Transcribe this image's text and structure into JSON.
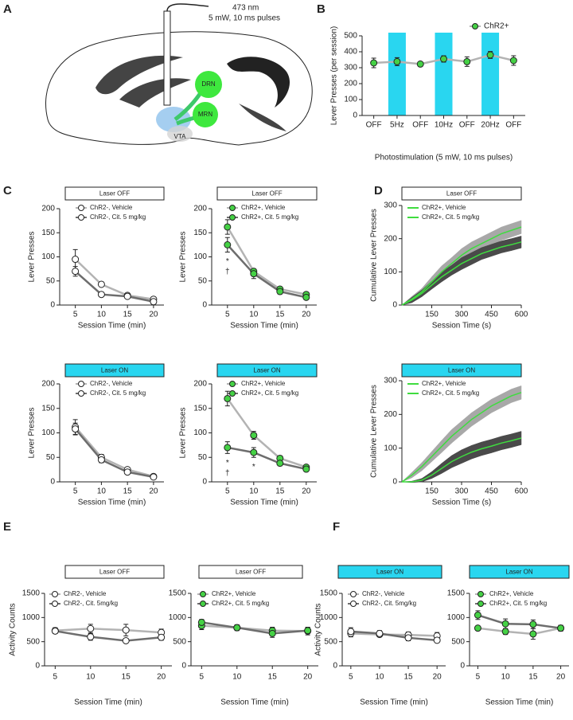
{
  "panels": [
    "A",
    "B",
    "C",
    "D",
    "E",
    "F"
  ],
  "diagram": {
    "laser_wavelength": "473 nm",
    "laser_settings": "5 mW, 10 ms pulses",
    "nodes": [
      "DRN",
      "MRN",
      "VTA"
    ]
  },
  "chart_data": [
    {
      "type": "line",
      "categories": [
        "OFF",
        "5Hz",
        "OFF",
        "10Hz",
        "OFF",
        "20Hz",
        "OFF"
      ],
      "series": [
        {
          "name": "ChR2+",
          "color": "#b3b3b3",
          "marker_fill": "#45d145",
          "values": [
            330,
            338,
            323,
            355,
            338,
            380,
            345
          ],
          "errors": [
            30,
            25,
            6,
            20,
            30,
            22,
            30
          ]
        }
      ],
      "highlight_color": "#29d6f0",
      "ylim": [
        0,
        500
      ],
      "yticks": [
        0,
        100,
        200,
        300,
        400,
        500
      ],
      "ylabel": "Lever Presses (per session)",
      "xlabel": "Photostimulation (5 mW, 10 ms pulses)",
      "legend": "top-right"
    },
    {
      "type": "line",
      "header": "Laser OFF",
      "header_color": "#ffffff",
      "x": [
        5,
        10,
        15,
        20
      ],
      "xlim": [
        2,
        22
      ],
      "xticks": [
        5,
        10,
        15,
        20
      ],
      "ylim": [
        0,
        200
      ],
      "yticks": [
        0,
        50,
        100,
        150,
        200
      ],
      "ylabel": "Lever Presses",
      "xlabel": "Session Time (min)",
      "legend": "top-left",
      "series": [
        {
          "name": "ChR2-, Vehicle",
          "color": "#b3b3b3",
          "marker_fill": "#ffffff",
          "values": [
            95,
            43,
            20,
            12
          ],
          "errors": [
            20,
            3,
            3,
            3
          ]
        },
        {
          "name": "ChR2-, Cit. 5 mg/kg",
          "color": "#6d6d6d",
          "marker_fill": "#ffffff",
          "values": [
            70,
            22,
            18,
            7
          ],
          "errors": [
            10,
            3,
            3,
            2
          ]
        }
      ]
    },
    {
      "type": "line",
      "header": "Laser OFF",
      "header_color": "#ffffff",
      "x": [
        5,
        10,
        15,
        20
      ],
      "xlim": [
        2,
        22
      ],
      "xticks": [
        5,
        10,
        15,
        20
      ],
      "ylim": [
        0,
        200
      ],
      "yticks": [
        0,
        50,
        100,
        150,
        200
      ],
      "ylabel": "Lever Presses",
      "xlabel": "Session Time (min)",
      "legend": "top-left",
      "series": [
        {
          "name": "ChR2+, Vehicle",
          "color": "#b3b3b3",
          "marker_fill": "#45d145",
          "values": [
            162,
            70,
            33,
            22
          ],
          "errors": [
            15,
            5,
            5,
            3
          ]
        },
        {
          "name": "ChR2+, Cit. 5 mg/kg",
          "color": "#6d6d6d",
          "marker_fill": "#45d145",
          "values": [
            125,
            65,
            28,
            16
          ],
          "errors": [
            15,
            10,
            5,
            3
          ]
        }
      ],
      "annotations": [
        {
          "text": "*",
          "x": 5
        },
        {
          "text": "†",
          "x": 5
        }
      ]
    },
    {
      "type": "line",
      "header": "Laser OFF",
      "header_color": "#ffffff",
      "x": [
        0,
        50,
        100,
        150,
        200,
        250,
        300,
        350,
        400,
        450,
        500,
        550,
        600
      ],
      "xlim": [
        0,
        600
      ],
      "xticks": [
        150,
        300,
        450,
        600
      ],
      "ylim": [
        0,
        300
      ],
      "yticks": [
        0,
        100,
        200,
        300
      ],
      "ylabel": "Cumulative Lever Presses",
      "xlabel": "Session Time (s)",
      "legend": "top-left",
      "series": [
        {
          "name": "ChR2+, Vehicle",
          "color": "#3fdc3f",
          "band_color": "#a8a8a8",
          "values": [
            0,
            18,
            40,
            70,
            100,
            125,
            150,
            170,
            185,
            200,
            215,
            225,
            235
          ],
          "errors": [
            0,
            8,
            10,
            15,
            18,
            18,
            20,
            20,
            20,
            20,
            20,
            20,
            20
          ]
        },
        {
          "name": "ChR2+, Cit. 5 mg/kg",
          "color": "#3fdc3f",
          "band_color": "#4a4a4a",
          "values": [
            0,
            15,
            35,
            60,
            85,
            105,
            125,
            140,
            155,
            165,
            175,
            182,
            190
          ],
          "errors": [
            0,
            8,
            10,
            12,
            15,
            15,
            18,
            18,
            18,
            18,
            18,
            18,
            18
          ]
        }
      ]
    },
    {
      "type": "line",
      "header": "Laser ON",
      "header_color": "#29d6f0",
      "x": [
        5,
        10,
        15,
        20
      ],
      "xlim": [
        2,
        22
      ],
      "xticks": [
        5,
        10,
        15,
        20
      ],
      "ylim": [
        0,
        200
      ],
      "yticks": [
        0,
        50,
        100,
        150,
        200
      ],
      "ylabel": "Lever Presses",
      "xlabel": "Session Time (min)",
      "legend": "top-left",
      "series": [
        {
          "name": "ChR2-, Vehicle",
          "color": "#b3b3b3",
          "marker_fill": "#ffffff",
          "values": [
            112,
            50,
            25,
            11
          ],
          "errors": [
            15,
            6,
            4,
            2
          ]
        },
        {
          "name": "ChR2-, Cit. 5 mg/kg",
          "color": "#6d6d6d",
          "marker_fill": "#ffffff",
          "values": [
            108,
            45,
            20,
            10
          ],
          "errors": [
            12,
            6,
            4,
            2
          ]
        }
      ]
    },
    {
      "type": "line",
      "header": "Laser ON",
      "header_color": "#29d6f0",
      "x": [
        5,
        10,
        15,
        20
      ],
      "xlim": [
        2,
        22
      ],
      "xticks": [
        5,
        10,
        15,
        20
      ],
      "ylim": [
        0,
        200
      ],
      "yticks": [
        0,
        50,
        100,
        150,
        200
      ],
      "ylabel": "Lever Presses",
      "xlabel": "Session Time (min)",
      "legend": "top-left",
      "series": [
        {
          "name": "ChR2+, Vehicle",
          "color": "#b3b3b3",
          "marker_fill": "#45d145",
          "values": [
            170,
            95,
            48,
            30
          ],
          "errors": [
            15,
            8,
            5,
            3
          ]
        },
        {
          "name": "ChR2+, Cit. 5 mg/kg",
          "color": "#6d6d6d",
          "marker_fill": "#45d145",
          "values": [
            70,
            60,
            38,
            26
          ],
          "errors": [
            12,
            10,
            5,
            3
          ]
        }
      ],
      "annotations": [
        {
          "text": "*",
          "x": 5
        },
        {
          "text": "†",
          "x": 5
        },
        {
          "text": "*",
          "x": 10
        }
      ]
    },
    {
      "type": "line",
      "header": "Laser ON",
      "header_color": "#29d6f0",
      "x": [
        0,
        50,
        100,
        150,
        200,
        250,
        300,
        350,
        400,
        450,
        500,
        550,
        600
      ],
      "xlim": [
        0,
        600
      ],
      "xticks": [
        150,
        300,
        450,
        600
      ],
      "ylim": [
        0,
        300
      ],
      "yticks": [
        0,
        100,
        200,
        300
      ],
      "ylabel": "Cumulative Lever Presses",
      "xlabel": "Session Time (s)",
      "legend": "top-left",
      "series": [
        {
          "name": "ChR2+, Vehicle",
          "color": "#3fdc3f",
          "band_color": "#a8a8a8",
          "values": [
            0,
            20,
            45,
            75,
            105,
            135,
            160,
            185,
            205,
            225,
            240,
            255,
            265
          ],
          "errors": [
            0,
            8,
            12,
            15,
            18,
            20,
            20,
            20,
            20,
            20,
            20,
            20,
            20
          ]
        },
        {
          "name": "ChR2+, Cit. 5 mg/kg",
          "color": "#3fdc3f",
          "band_color": "#4a4a4a",
          "values": [
            0,
            0,
            5,
            20,
            40,
            60,
            75,
            88,
            98,
            106,
            115,
            122,
            130
          ],
          "errors": [
            0,
            2,
            5,
            10,
            15,
            18,
            20,
            20,
            20,
            20,
            20,
            20,
            20
          ]
        }
      ]
    },
    {
      "type": "line",
      "header": "Laser OFF",
      "header_color": "#ffffff",
      "x": [
        5,
        10,
        15,
        20
      ],
      "xlim": [
        3.5,
        21.5
      ],
      "xticks": [
        5,
        10,
        15,
        20
      ],
      "ylim": [
        0,
        1500
      ],
      "yticks": [
        0,
        500,
        1000,
        1500
      ],
      "ylabel": "Activity Counts",
      "xlabel": "Session Time (min)",
      "legend": "top-left",
      "series": [
        {
          "name": "ChR2-, Vehicle",
          "color": "#b3b3b3",
          "marker_fill": "#ffffff",
          "values": [
            730,
            770,
            740,
            690
          ],
          "errors": [
            60,
            90,
            120,
            70
          ]
        },
        {
          "name": "ChR2-, Cit. 5mg/kg",
          "color": "#6d6d6d",
          "marker_fill": "#ffffff",
          "values": [
            720,
            600,
            520,
            590
          ],
          "errors": [
            50,
            70,
            40,
            60
          ]
        }
      ]
    },
    {
      "type": "line",
      "header": "Laser OFF",
      "header_color": "#ffffff",
      "x": [
        5,
        10,
        15,
        20
      ],
      "xlim": [
        3.5,
        21.5
      ],
      "xticks": [
        5,
        10,
        15,
        20
      ],
      "ylim": [
        0,
        1500
      ],
      "yticks": [
        0,
        500,
        1000,
        1500
      ],
      "xlabel": "Session Time (min)",
      "legend": "top-left",
      "series": [
        {
          "name": "ChR2+, Vehicle",
          "color": "#b3b3b3",
          "marker_fill": "#45d145",
          "values": [
            830,
            790,
            730,
            720
          ],
          "errors": [
            80,
            60,
            70,
            80
          ]
        },
        {
          "name": "ChR2+, Cit. 5 mg/kg",
          "color": "#6d6d6d",
          "marker_fill": "#45d145",
          "values": [
            900,
            790,
            670,
            730
          ],
          "errors": [
            60,
            50,
            80,
            60
          ]
        }
      ]
    },
    {
      "type": "line",
      "header": "Laser ON",
      "header_color": "#29d6f0",
      "x": [
        5,
        10,
        15,
        20
      ],
      "xlim": [
        3.5,
        21.5
      ],
      "xticks": [
        5,
        10,
        15,
        20
      ],
      "ylim": [
        0,
        1500
      ],
      "yticks": [
        0,
        500,
        1000,
        1500
      ],
      "ylabel": "Activity Counts",
      "xlabel": "Session Time (min)",
      "legend": "top-left",
      "series": [
        {
          "name": "ChR2-, Vehicle",
          "color": "#b3b3b3",
          "marker_fill": "#ffffff",
          "values": [
            670,
            650,
            640,
            620
          ],
          "errors": [
            70,
            50,
            60,
            70
          ]
        },
        {
          "name": "ChR2-, Cit. 5mg/kg",
          "color": "#6d6d6d",
          "marker_fill": "#ffffff",
          "values": [
            710,
            670,
            580,
            530
          ],
          "errors": [
            80,
            60,
            60,
            50
          ]
        }
      ]
    },
    {
      "type": "line",
      "header": "Laser ON",
      "header_color": "#29d6f0",
      "x": [
        5,
        10,
        15,
        20
      ],
      "xlim": [
        3.5,
        21.5
      ],
      "xticks": [
        5,
        10,
        15,
        20
      ],
      "ylim": [
        0,
        1500
      ],
      "yticks": [
        0,
        500,
        1000,
        1500
      ],
      "xlabel": "Session Time (min)",
      "legend": "top-left",
      "series": [
        {
          "name": "ChR2+, Vehicle",
          "color": "#b3b3b3",
          "marker_fill": "#45d145",
          "values": [
            780,
            710,
            660,
            780
          ],
          "errors": [
            40,
            60,
            110,
            60
          ]
        },
        {
          "name": "ChR2+, Cit. 5 mg/kg",
          "color": "#6d6d6d",
          "marker_fill": "#45d145",
          "values": [
            1050,
            870,
            860,
            780
          ],
          "errors": [
            90,
            100,
            90,
            50
          ]
        }
      ]
    }
  ]
}
